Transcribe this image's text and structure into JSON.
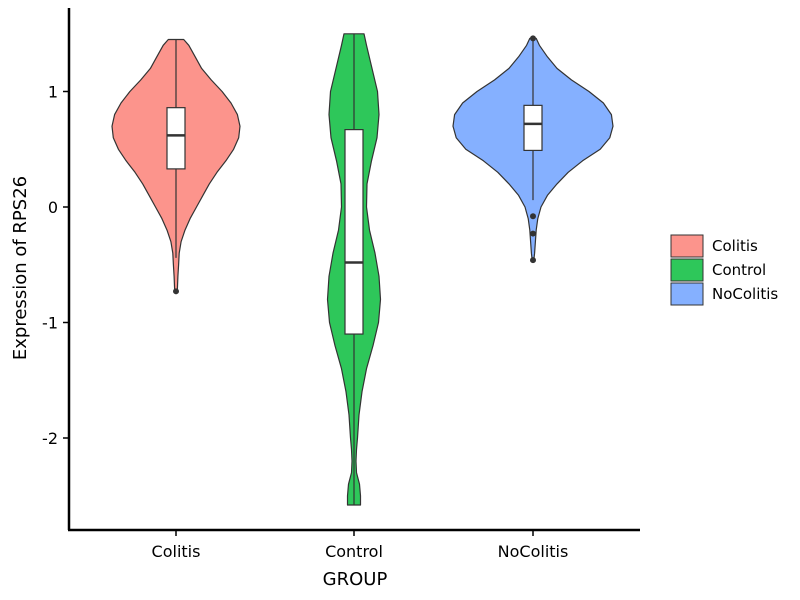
{
  "chart_data": {
    "type": "violin",
    "xlabel": "GROUP",
    "ylabel": "Expression of RPS26",
    "ylim": [
      -2.6,
      1.7
    ],
    "yticks": [
      {
        "value": 1,
        "label": "1"
      },
      {
        "value": 0,
        "label": "0"
      },
      {
        "value": -1,
        "label": "-1"
      },
      {
        "value": -2,
        "label": "-2"
      }
    ],
    "categories": [
      "Colitis",
      "Control",
      "NoColitis"
    ],
    "legend": {
      "position": "right",
      "entries": [
        "Colitis",
        "Control",
        "NoColitis"
      ]
    },
    "series": [
      {
        "name": "Colitis",
        "color": "#F8766D",
        "fill": "#FC948C",
        "box": {
          "q1": 0.33,
          "median": 0.62,
          "q3": 0.86,
          "whisker_low": -0.44,
          "whisker_high": 1.45
        },
        "outliers": [
          -0.73
        ],
        "density": [
          [
            1.45,
            0.12
          ],
          [
            1.4,
            0.2
          ],
          [
            1.3,
            0.3
          ],
          [
            1.2,
            0.4
          ],
          [
            1.1,
            0.55
          ],
          [
            1.0,
            0.72
          ],
          [
            0.9,
            0.86
          ],
          [
            0.8,
            0.96
          ],
          [
            0.7,
            1.0
          ],
          [
            0.6,
            0.98
          ],
          [
            0.5,
            0.9
          ],
          [
            0.4,
            0.78
          ],
          [
            0.3,
            0.64
          ],
          [
            0.2,
            0.52
          ],
          [
            0.1,
            0.42
          ],
          [
            0.0,
            0.32
          ],
          [
            -0.1,
            0.22
          ],
          [
            -0.2,
            0.14
          ],
          [
            -0.3,
            0.08
          ],
          [
            -0.4,
            0.05
          ],
          [
            -0.5,
            0.04
          ],
          [
            -0.6,
            0.03
          ],
          [
            -0.73,
            0.02
          ]
        ]
      },
      {
        "name": "Control",
        "color": "#00BA38",
        "fill": "#2EC75A",
        "box": {
          "q1": -1.1,
          "median": -0.48,
          "q3": 0.67,
          "whisker_low": -2.58,
          "whisker_high": 1.5
        },
        "outliers": [],
        "density": [
          [
            1.5,
            0.4
          ],
          [
            1.4,
            0.5
          ],
          [
            1.2,
            0.72
          ],
          [
            1.0,
            0.94
          ],
          [
            0.8,
            1.0
          ],
          [
            0.6,
            0.92
          ],
          [
            0.4,
            0.7
          ],
          [
            0.2,
            0.52
          ],
          [
            0.0,
            0.5
          ],
          [
            -0.2,
            0.62
          ],
          [
            -0.4,
            0.84
          ],
          [
            -0.6,
            1.0
          ],
          [
            -0.8,
            1.06
          ],
          [
            -1.0,
            0.98
          ],
          [
            -1.2,
            0.76
          ],
          [
            -1.4,
            0.5
          ],
          [
            -1.6,
            0.32
          ],
          [
            -1.8,
            0.2
          ],
          [
            -2.0,
            0.14
          ],
          [
            -2.1,
            0.1
          ],
          [
            -2.2,
            0.08
          ],
          [
            -2.3,
            0.1
          ],
          [
            -2.4,
            0.22
          ],
          [
            -2.5,
            0.26
          ],
          [
            -2.58,
            0.26
          ]
        ]
      },
      {
        "name": "NoColitis",
        "color": "#619CFF",
        "fill": "#85B0FF",
        "box": {
          "q1": 0.49,
          "median": 0.72,
          "q3": 0.88,
          "whisker_low": 0.06,
          "whisker_high": 1.46
        },
        "outliers": [
          1.46,
          -0.08,
          -0.23,
          -0.46
        ],
        "density": [
          [
            1.46,
            0.04
          ],
          [
            1.4,
            0.08
          ],
          [
            1.3,
            0.18
          ],
          [
            1.2,
            0.3
          ],
          [
            1.1,
            0.48
          ],
          [
            1.0,
            0.7
          ],
          [
            0.9,
            0.88
          ],
          [
            0.8,
            0.98
          ],
          [
            0.7,
            1.0
          ],
          [
            0.6,
            0.96
          ],
          [
            0.5,
            0.84
          ],
          [
            0.4,
            0.62
          ],
          [
            0.3,
            0.44
          ],
          [
            0.2,
            0.3
          ],
          [
            0.1,
            0.18
          ],
          [
            0.0,
            0.1
          ],
          [
            -0.1,
            0.06
          ],
          [
            -0.2,
            0.04
          ],
          [
            -0.3,
            0.03
          ],
          [
            -0.4,
            0.02
          ],
          [
            -0.46,
            0.01
          ]
        ]
      }
    ]
  }
}
